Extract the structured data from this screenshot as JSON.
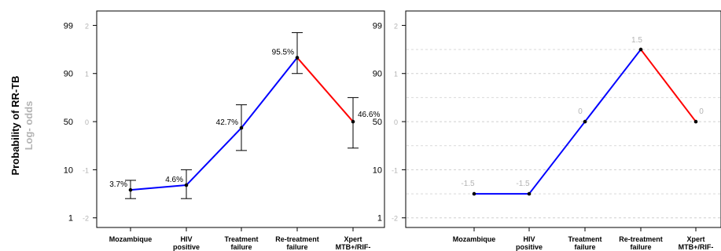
{
  "figure": {
    "y_axis_title": "Probability of RR-TB",
    "y_axis_subtitle": "Log- odds"
  },
  "chart_data": [
    {
      "type": "line",
      "panel": "left",
      "categories": [
        "Mozambique",
        "HIV positive",
        "Treatment failure",
        "Re-treatment failure",
        "Xpert MTB+/RIF-"
      ],
      "y_ticks_probability": [
        "99",
        "90",
        "50",
        "10",
        "1"
      ],
      "y_ticks_log_odds": [
        "2",
        "1",
        "0",
        "-1",
        "-2"
      ],
      "y_tick_positions_log_odds": [
        2,
        1,
        0,
        -1,
        -2
      ],
      "ylim_log_odds": [
        -2.2,
        2.3
      ],
      "values_log_odds": [
        -1.42,
        -1.32,
        -0.13,
        1.33,
        0.0
      ],
      "error_low_log_odds": [
        -1.6,
        -1.6,
        -0.6,
        1.0,
        -0.55
      ],
      "error_high_log_odds": [
        -1.22,
        -1.0,
        0.35,
        1.85,
        0.5
      ],
      "point_labels": [
        "3.7%",
        "4.6%",
        "42.7%",
        "95.5%",
        "46.6%"
      ],
      "series_colors": {
        "first_segments": "#0000ff",
        "last_segment": "#ff0000"
      },
      "grid": false
    },
    {
      "type": "line",
      "panel": "right",
      "categories": [
        "Mozambique",
        "HIV positive",
        "Treatment failure",
        "Re-treatment failure",
        "Xpert MTB+/RIF-"
      ],
      "y_ticks_probability": [
        "99",
        "90",
        "50",
        "10",
        "1"
      ],
      "y_ticks_log_odds": [
        "2",
        "1",
        "0",
        "-1",
        "-2"
      ],
      "y_tick_positions_log_odds": [
        2,
        1,
        0,
        -1,
        -2
      ],
      "ylim_log_odds": [
        -2.2,
        2.3
      ],
      "values_log_odds": [
        -1.5,
        -1.5,
        0,
        1.5,
        0
      ],
      "point_labels": [
        "-1.5",
        "-1.5",
        "0",
        "1.5",
        "0"
      ],
      "series_colors": {
        "first_segments": "#0000ff",
        "last_segment": "#ff0000"
      },
      "grid": true
    }
  ]
}
